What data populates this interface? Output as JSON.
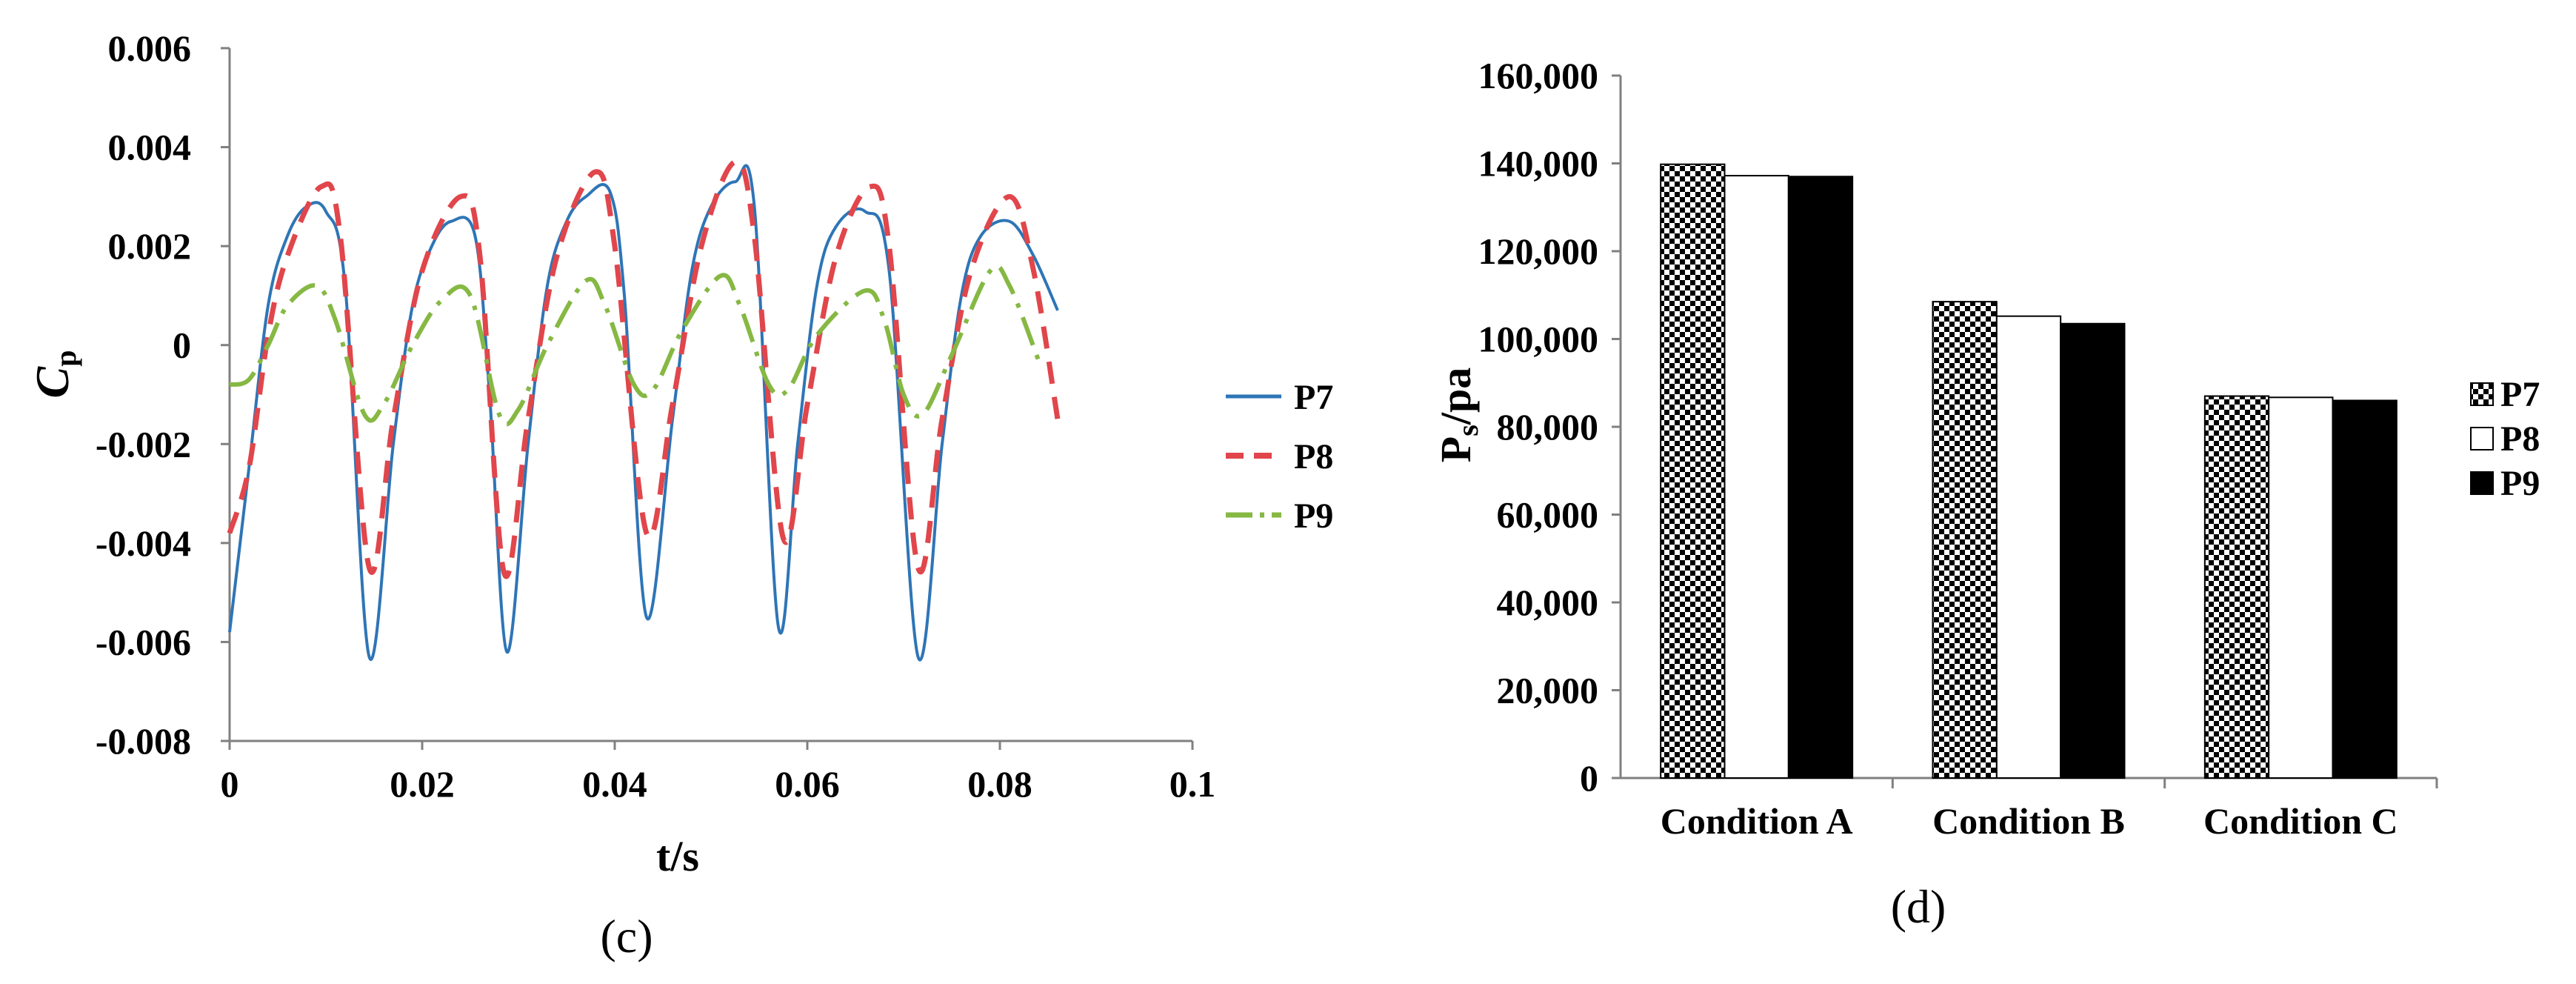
{
  "chart_data": [
    {
      "type": "line",
      "panel_label": "(c)",
      "xlabel": "t/s",
      "ylabel": "C",
      "ylabel_sub": "p",
      "xlim": [
        0,
        0.1
      ],
      "ylim": [
        -0.008,
        0.006
      ],
      "xticks": [
        0,
        0.02,
        0.04,
        0.06,
        0.08,
        0.1
      ],
      "xtick_labels": [
        "0",
        "0.02",
        "0.04",
        "0.06",
        "0.08",
        "0.1"
      ],
      "yticks": [
        -0.008,
        -0.006,
        -0.004,
        -0.002,
        0,
        0.002,
        0.004,
        0.006
      ],
      "ytick_labels": [
        "-0.008",
        "-0.006",
        "-0.004",
        "-0.002",
        "0",
        "0.002",
        "0.004",
        "0.006"
      ],
      "grid": false,
      "legend_position": "right",
      "series": [
        {
          "name": "P7",
          "color": "#2e75b6",
          "style": "solid",
          "x": [
            0,
            0.002,
            0.004,
            0.006,
            0.008,
            0.01,
            0.012,
            0.0145,
            0.017,
            0.019,
            0.021,
            0.023,
            0.0255,
            0.027,
            0.0288,
            0.031,
            0.033,
            0.035,
            0.037,
            0.0395,
            0.041,
            0.0433,
            0.046,
            0.048,
            0.05,
            0.0525,
            0.0545,
            0.057,
            0.059,
            0.061,
            0.063,
            0.066,
            0.0685,
            0.0715,
            0.074,
            0.076,
            0.078,
            0.081,
            0.0835,
            0.086
          ],
          "values": [
            -0.0058,
            -0.0025,
            0.0008,
            0.0022,
            0.0028,
            0.0027,
            0.0012,
            -0.0063,
            -0.002,
            0.0008,
            0.002,
            0.0025,
            0.0022,
            -0.001,
            -0.0062,
            -0.002,
            0.0012,
            0.0025,
            0.003,
            0.0031,
            0.001,
            -0.0055,
            -0.0015,
            0.0015,
            0.0028,
            0.0033,
            0.0028,
            -0.0057,
            -0.002,
            0.0012,
            0.0024,
            0.0027,
            0.0015,
            -0.0063,
            -0.002,
            0.001,
            0.0022,
            0.0025,
            0.0018,
            0.0007
          ]
        },
        {
          "name": "P8",
          "color": "#e0464b",
          "style": "dashed",
          "x": [
            0,
            0.002,
            0.004,
            0.006,
            0.0095,
            0.0115,
            0.0145,
            0.017,
            0.02,
            0.024,
            0.026,
            0.0285,
            0.031,
            0.034,
            0.038,
            0.04,
            0.0433,
            0.046,
            0.049,
            0.0525,
            0.0545,
            0.0575,
            0.06,
            0.063,
            0.0665,
            0.0685,
            0.0715,
            0.074,
            0.077,
            0.081,
            0.0835,
            0.086
          ],
          "values": [
            -0.0038,
            -0.0025,
            0.0002,
            0.0018,
            0.0032,
            0.0022,
            -0.0045,
            -0.0015,
            0.0015,
            0.003,
            0.0018,
            -0.0046,
            -0.0015,
            0.0018,
            0.0035,
            0.002,
            -0.0038,
            -0.0012,
            0.002,
            0.0037,
            0.0022,
            -0.0039,
            -0.0012,
            0.0018,
            0.0032,
            0.002,
            -0.0045,
            -0.0015,
            0.0015,
            0.003,
            0.0015,
            -0.0015
          ]
        },
        {
          "name": "P9",
          "color": "#86b843",
          "style": "dash-dot",
          "x": [
            0,
            0.002,
            0.004,
            0.006,
            0.009,
            0.011,
            0.014,
            0.016,
            0.019,
            0.022,
            0.025,
            0.028,
            0.03,
            0.033,
            0.037,
            0.039,
            0.042,
            0.044,
            0.047,
            0.051,
            0.053,
            0.056,
            0.058,
            0.061,
            0.066,
            0.068,
            0.07,
            0.072,
            0.075,
            0.079,
            0.081,
            0.084
          ],
          "values": [
            -0.0008,
            -0.0007,
            0,
            0.0008,
            0.0012,
            0.0005,
            -0.0014,
            -0.0012,
            0,
            0.0009,
            0.001,
            -0.0014,
            -0.0013,
            0,
            0.0013,
            0.0008,
            -0.0008,
            -0.0009,
            0.0003,
            0.0014,
            0.0008,
            -0.0008,
            -0.0009,
            0.0002,
            0.0011,
            0.0005,
            -0.001,
            -0.0014,
            -0.0002,
            0.0015,
            0.0012,
            -0.0003
          ]
        }
      ]
    },
    {
      "type": "bar",
      "panel_label": "(d)",
      "xlabel": "",
      "ylabel": "P",
      "ylabel_sub": "s",
      "ylabel_suffix": "/pa",
      "ylim": [
        0,
        160000
      ],
      "yticks": [
        0,
        20000,
        40000,
        60000,
        80000,
        100000,
        120000,
        140000,
        160000
      ],
      "ytick_labels": [
        "0",
        "20,000",
        "40,000",
        "60,000",
        "80,000",
        "100,000",
        "120,000",
        "140,000",
        "160,000"
      ],
      "categories": [
        "Condition A",
        "Condition B",
        "Condition C"
      ],
      "grid": false,
      "legend_position": "right",
      "series": [
        {
          "name": "P7",
          "fill": "checker",
          "values": [
            139800,
            108500,
            87000
          ]
        },
        {
          "name": "P8",
          "fill": "white",
          "values": [
            137200,
            105200,
            86700
          ]
        },
        {
          "name": "P9",
          "fill": "black",
          "values": [
            137000,
            103500,
            86000
          ]
        }
      ]
    }
  ]
}
